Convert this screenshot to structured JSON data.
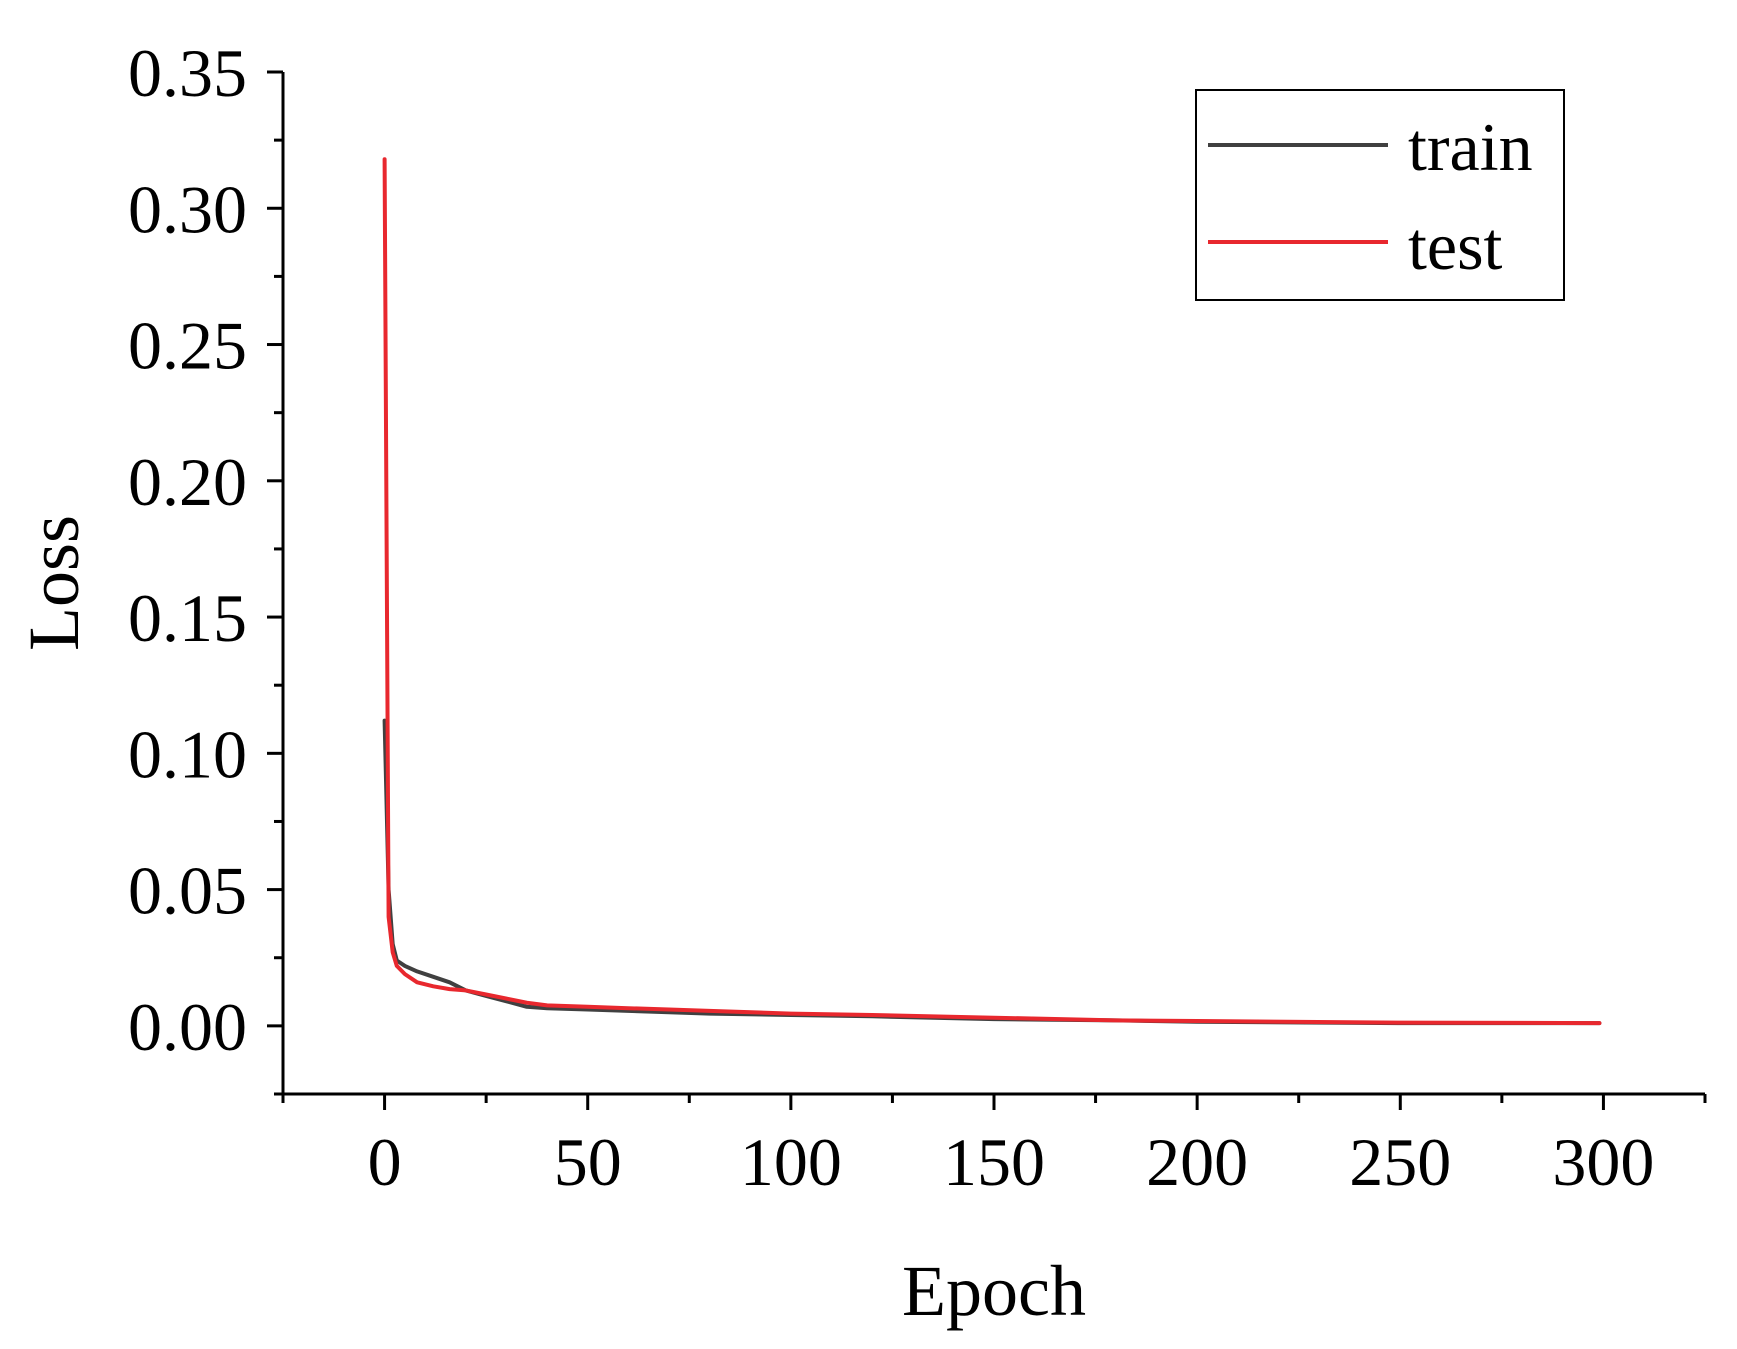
{
  "chart_data": {
    "type": "line",
    "title": "",
    "xlabel": "Epoch",
    "ylabel": "Loss",
    "xlim": [
      -25,
      325
    ],
    "ylim": [
      -0.025,
      0.35
    ],
    "xticks": [
      0,
      50,
      100,
      150,
      200,
      250,
      300
    ],
    "yticks": [
      0.0,
      0.05,
      0.1,
      0.15,
      0.2,
      0.25,
      0.3,
      0.35
    ],
    "xtick_labels": [
      "0",
      "50",
      "100",
      "150",
      "200",
      "250",
      "300"
    ],
    "ytick_labels": [
      "0.00",
      "0.05",
      "0.10",
      "0.15",
      "0.20",
      "0.25",
      "0.30",
      "0.35"
    ],
    "grid": false,
    "legend_position": "top-right",
    "series": [
      {
        "name": "train",
        "color": "#404040",
        "x": [
          0,
          1,
          2,
          3,
          5,
          8,
          12,
          16,
          20,
          25,
          30,
          35,
          40,
          50,
          60,
          70,
          80,
          100,
          120,
          150,
          180,
          200,
          250,
          299
        ],
        "y": [
          0.112,
          0.05,
          0.03,
          0.024,
          0.022,
          0.02,
          0.018,
          0.016,
          0.013,
          0.011,
          0.009,
          0.007,
          0.0065,
          0.006,
          0.0055,
          0.005,
          0.0045,
          0.004,
          0.0035,
          0.0025,
          0.002,
          0.0015,
          0.001,
          0.001
        ]
      },
      {
        "name": "test",
        "color": "#e8282e",
        "x": [
          0,
          1,
          2,
          3,
          5,
          8,
          12,
          16,
          20,
          25,
          30,
          35,
          40,
          50,
          60,
          70,
          80,
          100,
          120,
          150,
          180,
          200,
          250,
          299
        ],
        "y": [
          0.318,
          0.04,
          0.027,
          0.022,
          0.019,
          0.016,
          0.0145,
          0.0135,
          0.013,
          0.0115,
          0.01,
          0.0085,
          0.0075,
          0.007,
          0.0065,
          0.006,
          0.0055,
          0.0045,
          0.004,
          0.003,
          0.002,
          0.0018,
          0.0012,
          0.001
        ]
      }
    ]
  }
}
